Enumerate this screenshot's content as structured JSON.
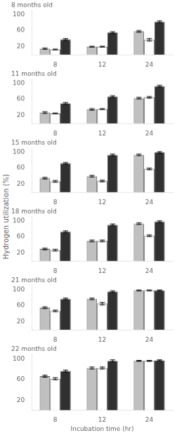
{
  "ylabel": "Hydrogen utilization (%)",
  "chart_data": [
    {
      "type": "bar",
      "title": "8 months old",
      "categories": [
        "8",
        "12",
        "24"
      ],
      "series": [
        {
          "color": "#c0c0c0",
          "values": [
            15,
            20,
            58
          ],
          "errors": [
            1.5,
            1,
            2
          ]
        },
        {
          "color": "#ffffff",
          "values": [
            13,
            20,
            37
          ],
          "errors": [
            1,
            1,
            3
          ]
        },
        {
          "color": "#303030",
          "values": [
            38,
            55,
            82
          ],
          "errors": [
            2,
            2,
            2
          ]
        }
      ],
      "ylim": [
        0,
        110
      ],
      "yticks": [
        20,
        60,
        100
      ],
      "grid": false
    },
    {
      "type": "bar",
      "title": "11 months old",
      "categories": [
        "8",
        "12",
        "24"
      ],
      "series": [
        {
          "color": "#c0c0c0",
          "values": [
            27,
            35,
            63
          ],
          "errors": [
            2,
            2,
            2
          ]
        },
        {
          "color": "#ffffff",
          "values": [
            25,
            36,
            65
          ],
          "errors": [
            1,
            1,
            2
          ]
        },
        {
          "color": "#303030",
          "values": [
            50,
            67,
            93
          ],
          "errors": [
            2,
            2,
            2
          ]
        }
      ],
      "ylim": [
        0,
        110
      ],
      "yticks": [
        20,
        60,
        100
      ],
      "grid": false
    },
    {
      "type": "bar",
      "title": "15 months old",
      "categories": [
        "8",
        "12",
        "24"
      ],
      "series": [
        {
          "color": "#c0c0c0",
          "values": [
            35,
            40,
            93
          ],
          "errors": [
            2,
            2,
            2
          ]
        },
        {
          "color": "#ffffff",
          "values": [
            27,
            28,
            58
          ],
          "errors": [
            2,
            2,
            2
          ]
        },
        {
          "color": "#303030",
          "values": [
            72,
            93,
            99
          ],
          "errors": [
            2,
            2,
            2
          ]
        }
      ],
      "ylim": [
        0,
        110
      ],
      "yticks": [
        20,
        60,
        100
      ],
      "grid": false
    },
    {
      "type": "bar",
      "title": "18 months old",
      "categories": [
        "8",
        "12",
        "24"
      ],
      "series": [
        {
          "color": "#c0c0c0",
          "values": [
            30,
            50,
            93
          ],
          "errors": [
            2,
            2,
            2
          ]
        },
        {
          "color": "#ffffff",
          "values": [
            27,
            50,
            63
          ],
          "errors": [
            2,
            2,
            2
          ]
        },
        {
          "color": "#303030",
          "values": [
            73,
            90,
            98
          ],
          "errors": [
            2,
            2,
            2
          ]
        }
      ],
      "ylim": [
        0,
        110
      ],
      "yticks": [
        20,
        60,
        100
      ],
      "grid": false
    },
    {
      "type": "bar",
      "title": "21 months old",
      "categories": [
        "8",
        "12",
        "24"
      ],
      "series": [
        {
          "color": "#c0c0c0",
          "values": [
            55,
            77,
            98
          ],
          "errors": [
            2,
            2,
            1
          ]
        },
        {
          "color": "#ffffff",
          "values": [
            47,
            65,
            98
          ],
          "errors": [
            2,
            3,
            1
          ]
        },
        {
          "color": "#303030",
          "values": [
            77,
            95,
            98
          ],
          "errors": [
            2,
            2,
            1
          ]
        }
      ],
      "ylim": [
        0,
        110
      ],
      "yticks": [
        20,
        60,
        100
      ],
      "grid": false
    },
    {
      "type": "bar",
      "title": "22 months old",
      "categories": [
        "8",
        "12",
        "24"
      ],
      "series": [
        {
          "color": "#c0c0c0",
          "values": [
            67,
            83,
            97
          ],
          "errors": [
            2,
            2,
            1
          ]
        },
        {
          "color": "#ffffff",
          "values": [
            62,
            83,
            97
          ],
          "errors": [
            2,
            2,
            1
          ]
        },
        {
          "color": "#303030",
          "values": [
            77,
            97,
            98
          ],
          "errors": [
            2,
            2,
            1
          ]
        }
      ],
      "ylim": [
        0,
        110
      ],
      "yticks": [
        20,
        60,
        100
      ],
      "grid": false,
      "xlabel": "Incubation time (hr)"
    }
  ]
}
